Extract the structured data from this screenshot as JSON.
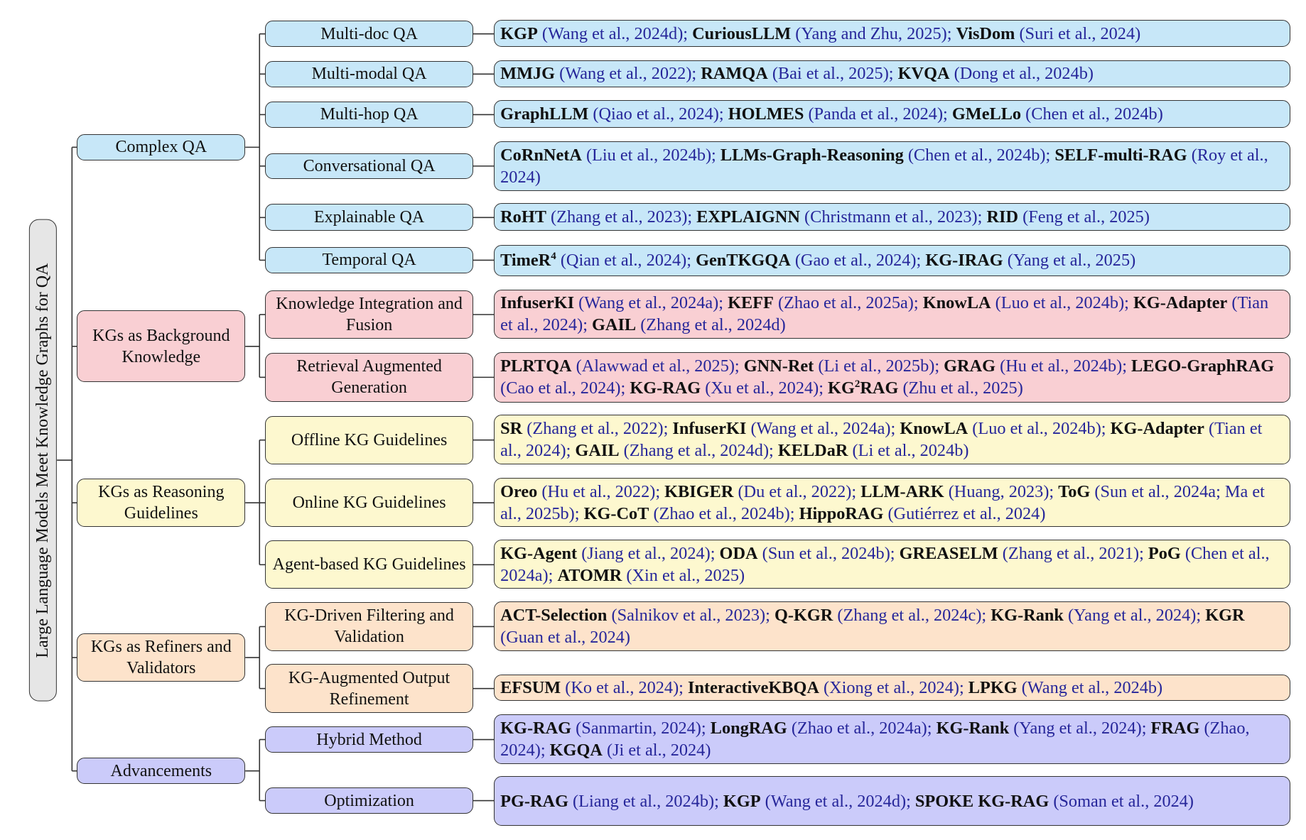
{
  "title": "Large Language Models Meet Knowledge Graphs for QA",
  "categories": [
    {
      "label": "Complex QA",
      "color": "#c7e7f8",
      "children": [
        {
          "label": "Multi-doc QA",
          "works": [
            {
              "name": "KGP",
              "cite": "(Wang et al., 2024d);"
            },
            {
              "name": "CuriousLLM",
              "cite": "(Yang and Zhu, 2025);"
            },
            {
              "name": "VisDom",
              "cite": "(Suri et al., 2024)"
            }
          ]
        },
        {
          "label": "Multi-modal QA",
          "works": [
            {
              "name": "MMJG",
              "cite": "(Wang et al., 2022);"
            },
            {
              "name": "RAMQA",
              "cite": "(Bai et al., 2025);"
            },
            {
              "name": "KVQA",
              "cite": "(Dong et al., 2024b)"
            }
          ]
        },
        {
          "label": "Multi-hop QA",
          "works": [
            {
              "name": "GraphLLM",
              "cite": "(Qiao et al., 2024);"
            },
            {
              "name": "HOLMES",
              "cite": "(Panda et al., 2024);"
            },
            {
              "name": "GMeLLo",
              "cite": "(Chen et al., 2024b)"
            }
          ]
        },
        {
          "label": "Conversational QA",
          "works": [
            {
              "name": "CoRnNetA",
              "cite": "(Liu et al., 2024b);"
            },
            {
              "name": "LLMs-Graph-Reasoning",
              "cite": "(Chen et al., 2024b);"
            },
            {
              "name": "SELF-multi-RAG",
              "cite": "(Roy et al., 2024)"
            }
          ]
        },
        {
          "label": "Explainable QA",
          "works": [
            {
              "name": "RoHT",
              "cite": "(Zhang et al., 2023);"
            },
            {
              "name": "EXPLAIGNN",
              "cite": "(Christmann et al., 2023);"
            },
            {
              "name": "RID",
              "cite": "(Feng et al., 2025)"
            }
          ]
        },
        {
          "label": "Temporal QA",
          "works": [
            {
              "name": "TimeR",
              "sup": "4",
              "cite": "(Qian et al., 2024);"
            },
            {
              "name": "GenTKGQA",
              "cite": "(Gao et al., 2024);"
            },
            {
              "name": "KG-IRAG",
              "cite": "(Yang et al., 2025)"
            }
          ]
        }
      ]
    },
    {
      "label": "KGs as Background Knowledge",
      "color": "#f9cfd3",
      "children": [
        {
          "label": "Knowledge Integration and Fusion",
          "works": [
            {
              "name": "InfuserKI",
              "cite": "(Wang et al., 2024a);"
            },
            {
              "name": "KEFF",
              "cite": "(Zhao et al., 2025a);"
            },
            {
              "name": "KnowLA",
              "cite": "(Luo et al., 2024b);"
            },
            {
              "name": "KG-Adapter",
              "cite": "(Tian et al., 2024);"
            },
            {
              "name": "GAIL",
              "cite": "(Zhang et al., 2024d)"
            }
          ]
        },
        {
          "label": "Retrieval Augmented Generation",
          "works": [
            {
              "name": "PLRTQA",
              "cite": "(Alawwad et al., 2025);"
            },
            {
              "name": "GNN-Ret",
              "cite": "(Li et al., 2025b);"
            },
            {
              "name": "GRAG",
              "cite": "(Hu et al., 2024b);"
            },
            {
              "name": "LEGO-GraphRAG",
              "cite": "(Cao et al., 2024);"
            },
            {
              "name": "KG-RAG",
              "cite": "(Xu et al., 2024);"
            },
            {
              "name": "KG",
              "sup": "2",
              "name_after": "RAG",
              "cite": "(Zhu et al., 2025)"
            }
          ]
        }
      ]
    },
    {
      "label": "KGs as Reasoning Guidelines",
      "color": "#fdf8cf",
      "children": [
        {
          "label": "Offline KG Guidelines",
          "works": [
            {
              "name": "SR",
              "cite": "(Zhang et al., 2022);"
            },
            {
              "name": "InfuserKI",
              "cite": "(Wang et al., 2024a);"
            },
            {
              "name": "KnowLA",
              "cite": "(Luo et al., 2024b);"
            },
            {
              "name": "KG-Adapter",
              "cite": "(Tian et al., 2024);"
            },
            {
              "name": "GAIL",
              "cite": "(Zhang et al., 2024d);"
            },
            {
              "name": "KELDaR",
              "cite": "(Li et al., 2024b)"
            }
          ]
        },
        {
          "label": "Online KG Guidelines",
          "works": [
            {
              "name": "Oreo",
              "cite": "(Hu et al., 2022);"
            },
            {
              "name": "KBIGER",
              "cite": "(Du et al., 2022);"
            },
            {
              "name": "LLM-ARK",
              "cite": "(Huang, 2023);"
            },
            {
              "name": "ToG",
              "cite": "(Sun et al., 2024a; Ma et al., 2025b);"
            },
            {
              "name": "KG-CoT",
              "cite": "(Zhao et al., 2024b);"
            },
            {
              "name": "HippoRAG",
              "cite": "(Gutiérrez et al., 2024)"
            }
          ]
        },
        {
          "label": "Agent-based KG Guidelines",
          "works": [
            {
              "name": "KG-Agent",
              "cite": "(Jiang et al., 2024);"
            },
            {
              "name": "ODA",
              "cite": "(Sun et al., 2024b);"
            },
            {
              "name": "GREASELM",
              "cite": "(Zhang et al., 2021);"
            },
            {
              "name": "PoG",
              "cite": "(Chen et al., 2024a);"
            },
            {
              "name": "ATOMR",
              "cite": "(Xin et al., 2025)"
            }
          ]
        }
      ]
    },
    {
      "label": "KGs as Refiners and Validators",
      "color": "#fde3cb",
      "children": [
        {
          "label": "KG-Driven Filtering and Validation",
          "works": [
            {
              "name": "ACT-Selection",
              "cite": "(Salnikov et al., 2023);"
            },
            {
              "name": "Q-KGR",
              "cite": "(Zhang et al., 2024c);"
            },
            {
              "name": "KG-Rank",
              "cite": "(Yang et al., 2024);"
            },
            {
              "name": "KGR",
              "cite": "(Guan et al., 2024)"
            }
          ]
        },
        {
          "label": "KG-Augmented Output Refinement",
          "works": [
            {
              "name": "EFSUM",
              "cite": "(Ko et al., 2024);"
            },
            {
              "name": "InteractiveKBQA",
              "cite": "(Xiong et al., 2024);"
            },
            {
              "name": "LPKG",
              "cite": "(Wang et al., 2024b)"
            }
          ]
        }
      ]
    },
    {
      "label": "Advancements",
      "color": "#cbcbfa",
      "children": [
        {
          "label": "Hybrid Method",
          "works": [
            {
              "name": "KG-RAG",
              "cite": "(Sanmartin, 2024);"
            },
            {
              "name": "LongRAG",
              "cite": "(Zhao et al., 2024a);"
            },
            {
              "name": "KG-Rank",
              "cite": "(Yang et al., 2024);"
            },
            {
              "name": "FRAG",
              "cite": "(Zhao, 2024);"
            },
            {
              "name": "KGQA",
              "cite": "(Ji et al., 2024)"
            }
          ]
        },
        {
          "label": "Optimization",
          "works": [
            {
              "name": "PG-RAG",
              "cite": "(Liang et al., 2024b);"
            },
            {
              "name": "KGP",
              "cite": "(Wang et al., 2024d);"
            },
            {
              "name": "SPOKE KG-RAG",
              "cite": "(Soman et al., 2024)"
            }
          ]
        }
      ]
    }
  ]
}
